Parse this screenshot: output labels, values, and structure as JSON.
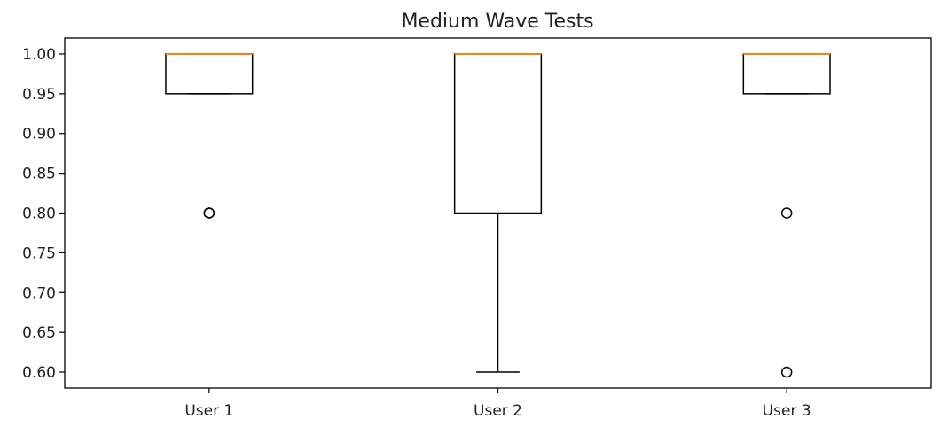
{
  "chart_data": {
    "type": "boxplot",
    "title": "Medium Wave Tests",
    "xlabel": "",
    "ylabel": "",
    "categories": [
      "User 1",
      "User 2",
      "User 3"
    ],
    "ylim": [
      0.58,
      1.02
    ],
    "yticks": [
      "0.60",
      "0.65",
      "0.70",
      "0.75",
      "0.80",
      "0.85",
      "0.90",
      "0.95",
      "1.00"
    ],
    "boxes": [
      {
        "label": "User 1",
        "whisker_low": 0.95,
        "q1": 0.95,
        "median": 1.0,
        "q3": 1.0,
        "whisker_high": 1.0,
        "outliers": [
          0.8,
          0.8
        ]
      },
      {
        "label": "User 2",
        "whisker_low": 0.6,
        "q1": 0.8,
        "median": 1.0,
        "q3": 1.0,
        "whisker_high": 1.0,
        "outliers": []
      },
      {
        "label": "User 3",
        "whisker_low": 0.95,
        "q1": 0.95,
        "median": 1.0,
        "q3": 1.0,
        "whisker_high": 1.0,
        "outliers": [
          0.8,
          0.6
        ]
      }
    ],
    "colors": {
      "box": "#000000",
      "median": "#ff7f0e",
      "outlier": "#000000"
    },
    "grid": false,
    "legend": "none"
  }
}
